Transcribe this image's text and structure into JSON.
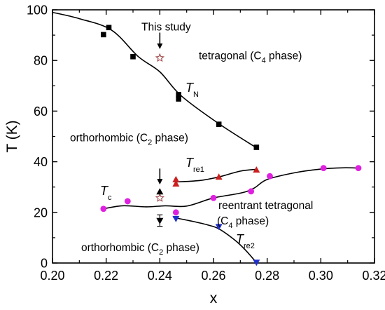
{
  "chart_data": {
    "type": "scatter",
    "xlabel": "x",
    "ylabel": "T (K)",
    "xlim": [
      0.2,
      0.32
    ],
    "ylim": [
      0,
      100
    ],
    "x_ticks": [
      "0.20",
      "0.22",
      "0.24",
      "0.26",
      "0.28",
      "0.30",
      "0.32"
    ],
    "y_ticks": [
      "0",
      "20",
      "40",
      "60",
      "80",
      "100"
    ],
    "grid": false,
    "legend": "none",
    "annotations": {
      "this_study": "This study",
      "tetragonal_main": "tetragonal (C",
      "tetragonal_sub": "4",
      "tetragonal_tail": " phase)",
      "ortho_top_main": "orthorhombic (C",
      "ortho_top_sub": "2",
      "ortho_top_tail": " phase)",
      "reentrant": "reentrant tetragonal",
      "reentrant2_main": "(C",
      "reentrant2_sub": "4",
      "reentrant2_tail": " phase)",
      "ortho_bottom_main": "orthorhombic (C",
      "ortho_bottom_sub": "2",
      "ortho_bottom_tail": " phase)",
      "TN_main": "T",
      "TN_sub": "N",
      "Tre1_main": "T",
      "Tre1_sub": "re1",
      "Tc_main": "T",
      "Tc_sub": "c",
      "Tre2_main": "T",
      "Tre2_sub": "re2"
    },
    "series": [
      {
        "key": "TN",
        "marker": "square",
        "color": "#000000",
        "points": [
          [
            0.219,
            90.2
          ],
          [
            0.221,
            93.0
          ],
          [
            0.23,
            81.5
          ],
          [
            0.247,
            66.5
          ],
          [
            0.247,
            64.8
          ],
          [
            0.262,
            54.8
          ],
          [
            0.276,
            45.7
          ]
        ]
      },
      {
        "key": "Tre1",
        "marker": "triangle-up",
        "color": "#cc1f1f",
        "points": [
          [
            0.246,
            33.0
          ],
          [
            0.246,
            31.3
          ],
          [
            0.262,
            34.0
          ],
          [
            0.276,
            36.8
          ]
        ]
      },
      {
        "key": "Tc",
        "marker": "circle",
        "color": "#e020e0",
        "points": [
          [
            0.219,
            21.4
          ],
          [
            0.228,
            24.4
          ],
          [
            0.246,
            20.0
          ],
          [
            0.26,
            25.7
          ],
          [
            0.274,
            28.3
          ],
          [
            0.281,
            34.3
          ],
          [
            0.301,
            37.5
          ],
          [
            0.314,
            37.5
          ]
        ]
      },
      {
        "key": "Tre2",
        "marker": "triangle-down",
        "color": "#1f2fcc",
        "points": [
          [
            0.246,
            17.5
          ],
          [
            0.262,
            14.3
          ],
          [
            0.276,
            0.2
          ]
        ]
      },
      {
        "key": "this_study_TN",
        "marker": "star-open",
        "color": "#a04848",
        "points": [
          [
            0.24,
            81.0
          ]
        ]
      },
      {
        "key": "this_study_Tc",
        "marker": "star-open",
        "color": "#a04848",
        "points": [
          [
            0.24,
            25.7
          ]
        ]
      },
      {
        "key": "this_study_up",
        "marker": "triangle-up",
        "color": "#000000",
        "points": [
          [
            0.24,
            28.2
          ]
        ]
      },
      {
        "key": "this_study_down",
        "marker": "triangle-down",
        "color": "#000000",
        "points": [
          [
            0.24,
            16.7
          ]
        ]
      }
    ],
    "fit_curves": [
      {
        "key": "TN_fit",
        "points": [
          [
            0.2,
            99.0
          ],
          [
            0.21,
            96.5
          ],
          [
            0.222,
            92.0
          ],
          [
            0.232,
            81.5
          ],
          [
            0.24,
            75.5
          ],
          [
            0.248,
            66.0
          ],
          [
            0.262,
            55.0
          ],
          [
            0.276,
            45.5
          ]
        ]
      },
      {
        "key": "Tre1_fit",
        "points": [
          [
            0.246,
            32.0
          ],
          [
            0.255,
            32.6
          ],
          [
            0.262,
            34.0
          ],
          [
            0.27,
            36.3
          ],
          [
            0.276,
            37.0
          ]
        ]
      },
      {
        "key": "Tc_fit",
        "points": [
          [
            0.219,
            21.4
          ],
          [
            0.226,
            22.6
          ],
          [
            0.235,
            22.2
          ],
          [
            0.242,
            22.6
          ],
          [
            0.25,
            22.5
          ],
          [
            0.26,
            25.7
          ],
          [
            0.27,
            27.6
          ],
          [
            0.275,
            29.5
          ],
          [
            0.28,
            33.0
          ],
          [
            0.29,
            35.6
          ],
          [
            0.3,
            37.1
          ],
          [
            0.308,
            37.6
          ],
          [
            0.314,
            37.5
          ]
        ]
      },
      {
        "key": "Tre2_fit",
        "points": [
          [
            0.245,
            18.0
          ],
          [
            0.252,
            16.5
          ],
          [
            0.258,
            15.0
          ],
          [
            0.262,
            13.5
          ],
          [
            0.268,
            9.0
          ],
          [
            0.272,
            5.0
          ],
          [
            0.276,
            0.2
          ]
        ]
      }
    ],
    "error_bar": {
      "x": 0.24,
      "y": 16.7,
      "low": 14.5,
      "high": 19.0
    },
    "arrows": [
      {
        "x": 0.24,
        "y_from": 91.0,
        "y_to": 84.5
      },
      {
        "x": 0.24,
        "y_from": 37.3,
        "y_to": 31.0
      }
    ]
  }
}
